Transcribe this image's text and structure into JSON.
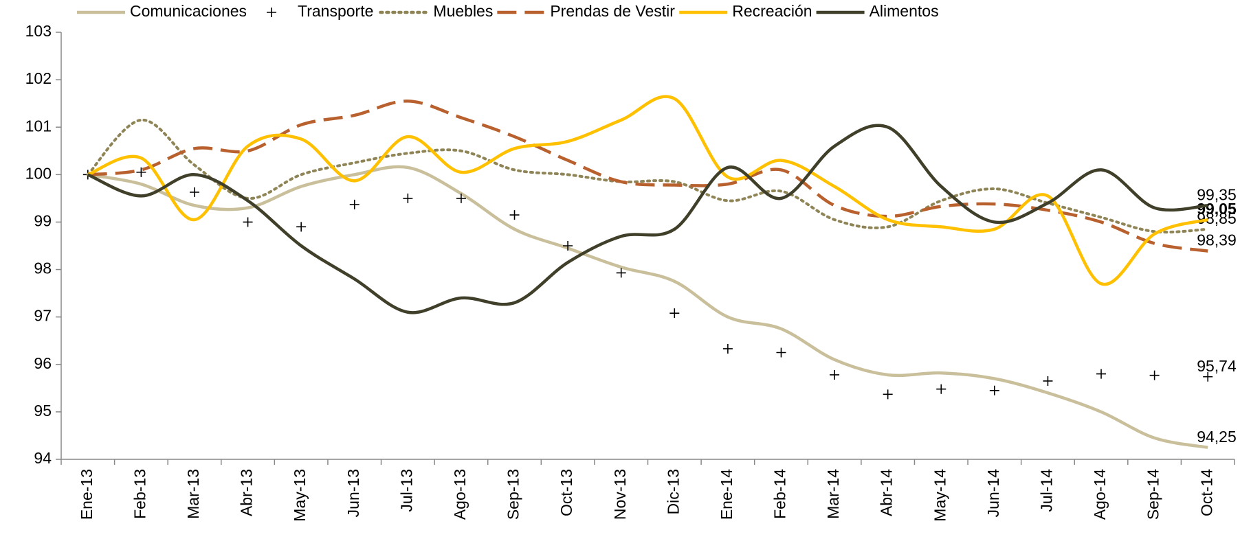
{
  "chart_data": {
    "type": "line",
    "categories": [
      "Ene-13",
      "Feb-13",
      "Mar-13",
      "Abr-13",
      "May-13",
      "Jun-13",
      "Jul-13",
      "Ago-13",
      "Sep-13",
      "Oct-13",
      "Nov-13",
      "Dic-13",
      "Ene-14",
      "Feb-14",
      "Mar-14",
      "Abr-14",
      "May-14",
      "Jun-14",
      "Jul-14",
      "Ago-14",
      "Sep-14",
      "Oct-14"
    ],
    "ylim": [
      94,
      103
    ],
    "yticks": [
      94,
      95,
      96,
      97,
      98,
      99,
      100,
      101,
      102,
      103
    ],
    "grid": false,
    "legend": "top",
    "smooth": true,
    "series": [
      {
        "name": "Comunicaciones",
        "color": "#c9bf9b",
        "line_style": "solid",
        "label_color": "#4a4a2a",
        "values": [
          100,
          99.8,
          99.35,
          99.3,
          99.75,
          100.0,
          100.15,
          99.6,
          98.85,
          98.45,
          98.05,
          97.75,
          97.0,
          96.75,
          96.1,
          95.78,
          95.82,
          95.7,
          95.4,
          95.0,
          94.45,
          94.25
        ],
        "value_labels": [
          null,
          null,
          null,
          null,
          null,
          null,
          null,
          null,
          null,
          null,
          null,
          null,
          null,
          null,
          null,
          null,
          null,
          null,
          null,
          null,
          null,
          "94,25"
        ]
      },
      {
        "name": "Transporte",
        "color": "#000000",
        "line_style": "none",
        "marker": "plus",
        "label_color": "#000000",
        "values": [
          100,
          100.05,
          99.63,
          99.0,
          98.9,
          99.37,
          99.5,
          99.5,
          99.15,
          98.5,
          97.93,
          97.08,
          96.33,
          96.25,
          95.78,
          95.37,
          95.48,
          95.45,
          95.65,
          95.8,
          95.77,
          95.74
        ],
        "value_labels": [
          null,
          null,
          null,
          null,
          null,
          null,
          null,
          null,
          null,
          null,
          null,
          null,
          null,
          null,
          null,
          null,
          null,
          null,
          null,
          null,
          null,
          "95,74"
        ]
      },
      {
        "name": "Muebles",
        "color": "#8f8456",
        "line_style": "dotted",
        "label_color": "#000000",
        "values": [
          100,
          101.15,
          100.2,
          99.5,
          100.0,
          100.25,
          100.45,
          100.5,
          100.1,
          100.0,
          99.85,
          99.85,
          99.45,
          99.65,
          99.05,
          98.9,
          99.45,
          99.7,
          99.4,
          99.1,
          98.8,
          98.85
        ],
        "value_labels": [
          null,
          null,
          null,
          null,
          null,
          null,
          null,
          null,
          null,
          null,
          null,
          null,
          null,
          null,
          null,
          null,
          null,
          null,
          null,
          null,
          null,
          "98,85"
        ]
      },
      {
        "name": "Prendas de Vestir",
        "color": "#b8612f",
        "line_style": "dashed",
        "label_color": "#e0925a",
        "values": [
          100,
          100.1,
          100.55,
          100.5,
          101.05,
          101.25,
          101.55,
          101.2,
          100.8,
          100.3,
          99.85,
          99.78,
          99.8,
          100.1,
          99.35,
          99.12,
          99.33,
          99.38,
          99.25,
          99.0,
          98.55,
          98.39
        ],
        "value_labels": [
          null,
          null,
          null,
          null,
          null,
          null,
          null,
          null,
          null,
          null,
          null,
          null,
          null,
          null,
          null,
          null,
          null,
          null,
          null,
          null,
          null,
          "98,39"
        ]
      },
      {
        "name": "Recreación",
        "color": "#ffc000",
        "line_style": "solid",
        "label_color": "#ffc000",
        "label_bold": true,
        "values": [
          100,
          100.35,
          99.05,
          100.6,
          100.75,
          99.87,
          100.8,
          100.05,
          100.55,
          100.7,
          101.15,
          101.6,
          99.95,
          100.3,
          99.75,
          99.05,
          98.9,
          98.85,
          99.55,
          97.7,
          98.75,
          99.05
        ],
        "value_labels": [
          null,
          null,
          null,
          null,
          null,
          null,
          null,
          null,
          null,
          null,
          null,
          null,
          null,
          null,
          null,
          null,
          null,
          null,
          null,
          null,
          null,
          "99,05"
        ]
      },
      {
        "name": "Alimentos",
        "color": "#403f2a",
        "line_style": "solid",
        "label_color": "#4a4a2a",
        "values": [
          100,
          99.55,
          100.0,
          99.45,
          98.5,
          97.8,
          97.1,
          97.4,
          97.3,
          98.15,
          98.7,
          98.85,
          100.15,
          99.5,
          100.6,
          101.0,
          99.75,
          99.0,
          99.4,
          100.1,
          99.3,
          99.35
        ],
        "value_labels": [
          null,
          null,
          null,
          null,
          null,
          null,
          null,
          null,
          null,
          null,
          null,
          null,
          null,
          null,
          null,
          null,
          null,
          null,
          null,
          null,
          null,
          "99,35"
        ]
      }
    ]
  }
}
